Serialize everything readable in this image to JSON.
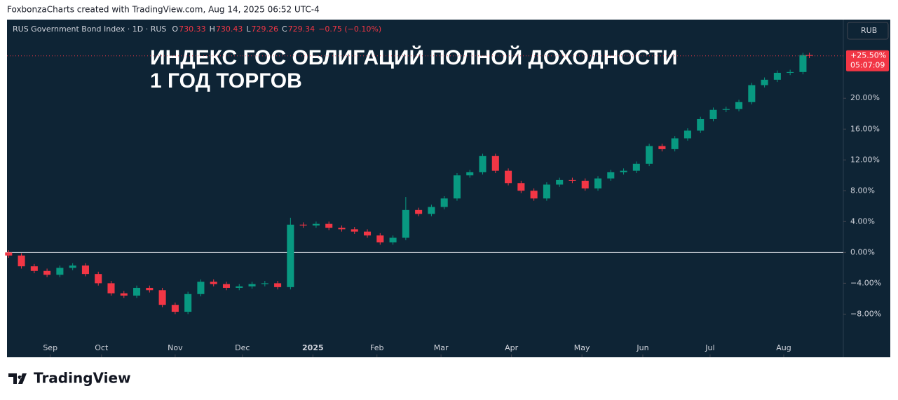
{
  "header": "FoxbonzaCharts created with TradingView.com, Aug 14, 2025 06:52 UTC-4",
  "footer": "TradingView",
  "currency_button": "RUB",
  "legend": {
    "symbol": "RUS Government Bond Index · 1D · RUS",
    "ohlc": [
      {
        "key": "O",
        "value": 730.33
      },
      {
        "key": "H",
        "value": 730.43
      },
      {
        "key": "L",
        "value": 729.26
      },
      {
        "key": "C",
        "value": 729.34
      }
    ],
    "change": "−0.75 (−0.10%)"
  },
  "chart_data": {
    "type": "candlestick",
    "title": "ИНДЕКС ГОС ОБЛИГАЦИЙ ПОЛНОЙ ДОХОДНОСТИ",
    "subtitle": "1 ГОД ТОРГОВ",
    "up_color": "#089981",
    "down_color": "#f23645",
    "x": [
      0,
      4,
      8,
      12,
      16,
      20,
      24,
      28,
      32,
      36,
      40,
      44,
      48,
      52,
      56,
      60,
      64,
      68,
      72,
      76,
      80,
      84,
      88,
      92,
      96,
      100,
      104,
      108,
      112,
      116,
      120,
      124,
      128,
      132,
      136,
      140,
      144,
      148,
      152,
      156,
      160,
      164,
      168,
      172,
      176,
      180,
      184,
      188,
      192,
      196,
      200,
      204,
      208,
      212,
      216,
      220,
      224,
      228,
      232,
      236,
      240,
      244,
      248,
      250
    ],
    "open": [
      0,
      -0.4,
      -1.8,
      -2.4,
      -2.9,
      -2.0,
      -1.7,
      -2.8,
      -4.0,
      -5.3,
      -5.6,
      -4.6,
      -4.9,
      -6.8,
      -7.7,
      -5.4,
      -3.8,
      -4.1,
      -4.6,
      -4.4,
      -4.1,
      -4.0,
      -4.5,
      3.6,
      3.5,
      3.7,
      3.2,
      3.0,
      2.7,
      2.2,
      1.3,
      1.9,
      5.5,
      5.0,
      5.9,
      7.0,
      10.0,
      10.4,
      12.5,
      10.6,
      9.0,
      8.0,
      7.0,
      8.8,
      9.4,
      9.3,
      8.3,
      9.6,
      10.4,
      10.6,
      11.5,
      13.8,
      13.4,
      14.8,
      15.8,
      17.3,
      18.5,
      18.6,
      19.5,
      21.7,
      22.4,
      23.3,
      23.4,
      25.6
    ],
    "high": [
      0.3,
      -0.1,
      -1.5,
      -2.1,
      -1.7,
      -1.4,
      -1.4,
      -2.5,
      -3.7,
      -5.0,
      -4.3,
      -4.3,
      -4.6,
      -6.5,
      -5.1,
      -3.5,
      -3.5,
      -3.8,
      -4.1,
      -3.8,
      -3.7,
      -3.7,
      4.5,
      3.9,
      4.0,
      4.0,
      3.5,
      3.3,
      3.0,
      2.5,
      2.2,
      7.2,
      5.8,
      6.2,
      7.3,
      10.3,
      10.7,
      12.8,
      12.8,
      10.9,
      9.3,
      8.3,
      9.1,
      9.7,
      9.7,
      9.6,
      9.9,
      10.7,
      10.9,
      11.8,
      14.1,
      14.1,
      15.1,
      16.1,
      17.6,
      18.8,
      18.9,
      19.8,
      22.0,
      22.7,
      23.6,
      23.7,
      25.9,
      25.9
    ],
    "low": [
      -0.7,
      -2.1,
      -2.7,
      -3.2,
      -3.2,
      -2.3,
      -3.1,
      -4.3,
      -5.6,
      -5.9,
      -5.9,
      -5.2,
      -7.1,
      -8.0,
      -8.0,
      -5.7,
      -4.4,
      -4.9,
      -4.9,
      -4.7,
      -4.4,
      -4.8,
      -4.8,
      3.2,
      3.2,
      2.9,
      2.7,
      2.4,
      1.9,
      1.0,
      1.0,
      1.6,
      4.7,
      4.7,
      5.6,
      6.7,
      9.7,
      10.1,
      10.3,
      8.7,
      7.7,
      6.7,
      6.7,
      8.5,
      9.0,
      8.0,
      8.0,
      9.3,
      10.1,
      10.3,
      11.2,
      13.1,
      13.1,
      14.5,
      15.5,
      17.0,
      18.2,
      18.3,
      19.2,
      21.4,
      22.1,
      23.0,
      23.1,
      25.2
    ],
    "close": [
      -0.4,
      -1.8,
      -2.4,
      -2.9,
      -2.0,
      -1.7,
      -2.8,
      -4.0,
      -5.3,
      -5.6,
      -4.6,
      -4.9,
      -6.8,
      -7.7,
      -5.4,
      -3.8,
      -4.1,
      -4.6,
      -4.4,
      -4.1,
      -4.0,
      -4.5,
      3.6,
      3.5,
      3.7,
      3.2,
      3.0,
      2.7,
      2.2,
      1.3,
      1.9,
      5.5,
      5.0,
      5.9,
      7.0,
      10.0,
      10.4,
      12.5,
      10.6,
      9.0,
      8.0,
      7.0,
      8.8,
      9.4,
      9.3,
      8.3,
      9.6,
      10.4,
      10.6,
      11.5,
      13.8,
      13.4,
      14.8,
      15.8,
      17.3,
      18.5,
      18.6,
      19.5,
      21.7,
      22.4,
      23.3,
      23.4,
      25.6,
      25.5
    ],
    "xlim": [
      -0.5,
      260.6
    ],
    "xticks": [
      {
        "value": 13,
        "label": "Sep"
      },
      {
        "value": 29,
        "label": "Oct"
      },
      {
        "value": 52,
        "label": "Nov"
      },
      {
        "value": 73,
        "label": "Dec"
      },
      {
        "value": 95,
        "label": "2025"
      },
      {
        "value": 115,
        "label": "Feb"
      },
      {
        "value": 135,
        "label": "Mar"
      },
      {
        "value": 157,
        "label": "Apr"
      },
      {
        "value": 179,
        "label": "May"
      },
      {
        "value": 198,
        "label": "Jun"
      },
      {
        "value": 219,
        "label": "Jul"
      },
      {
        "value": 242,
        "label": "Aug"
      }
    ],
    "ylim": [
      -13.6,
      30.2
    ],
    "yticks": [
      {
        "value": -8,
        "label": "−8.00%"
      },
      {
        "value": -4,
        "label": "−4.00%"
      },
      {
        "value": 0,
        "label": "0.00%"
      },
      {
        "value": 4,
        "label": "4.00%"
      },
      {
        "value": 8,
        "label": "8.00%"
      },
      {
        "value": 12,
        "label": "12.00%"
      },
      {
        "value": 16,
        "label": "16.00%"
      },
      {
        "value": 20,
        "label": "20.00%"
      }
    ],
    "baseline": 0,
    "last_label": {
      "value": 25.5,
      "label": "+25.50%"
    },
    "countdown": "05:07:09"
  }
}
